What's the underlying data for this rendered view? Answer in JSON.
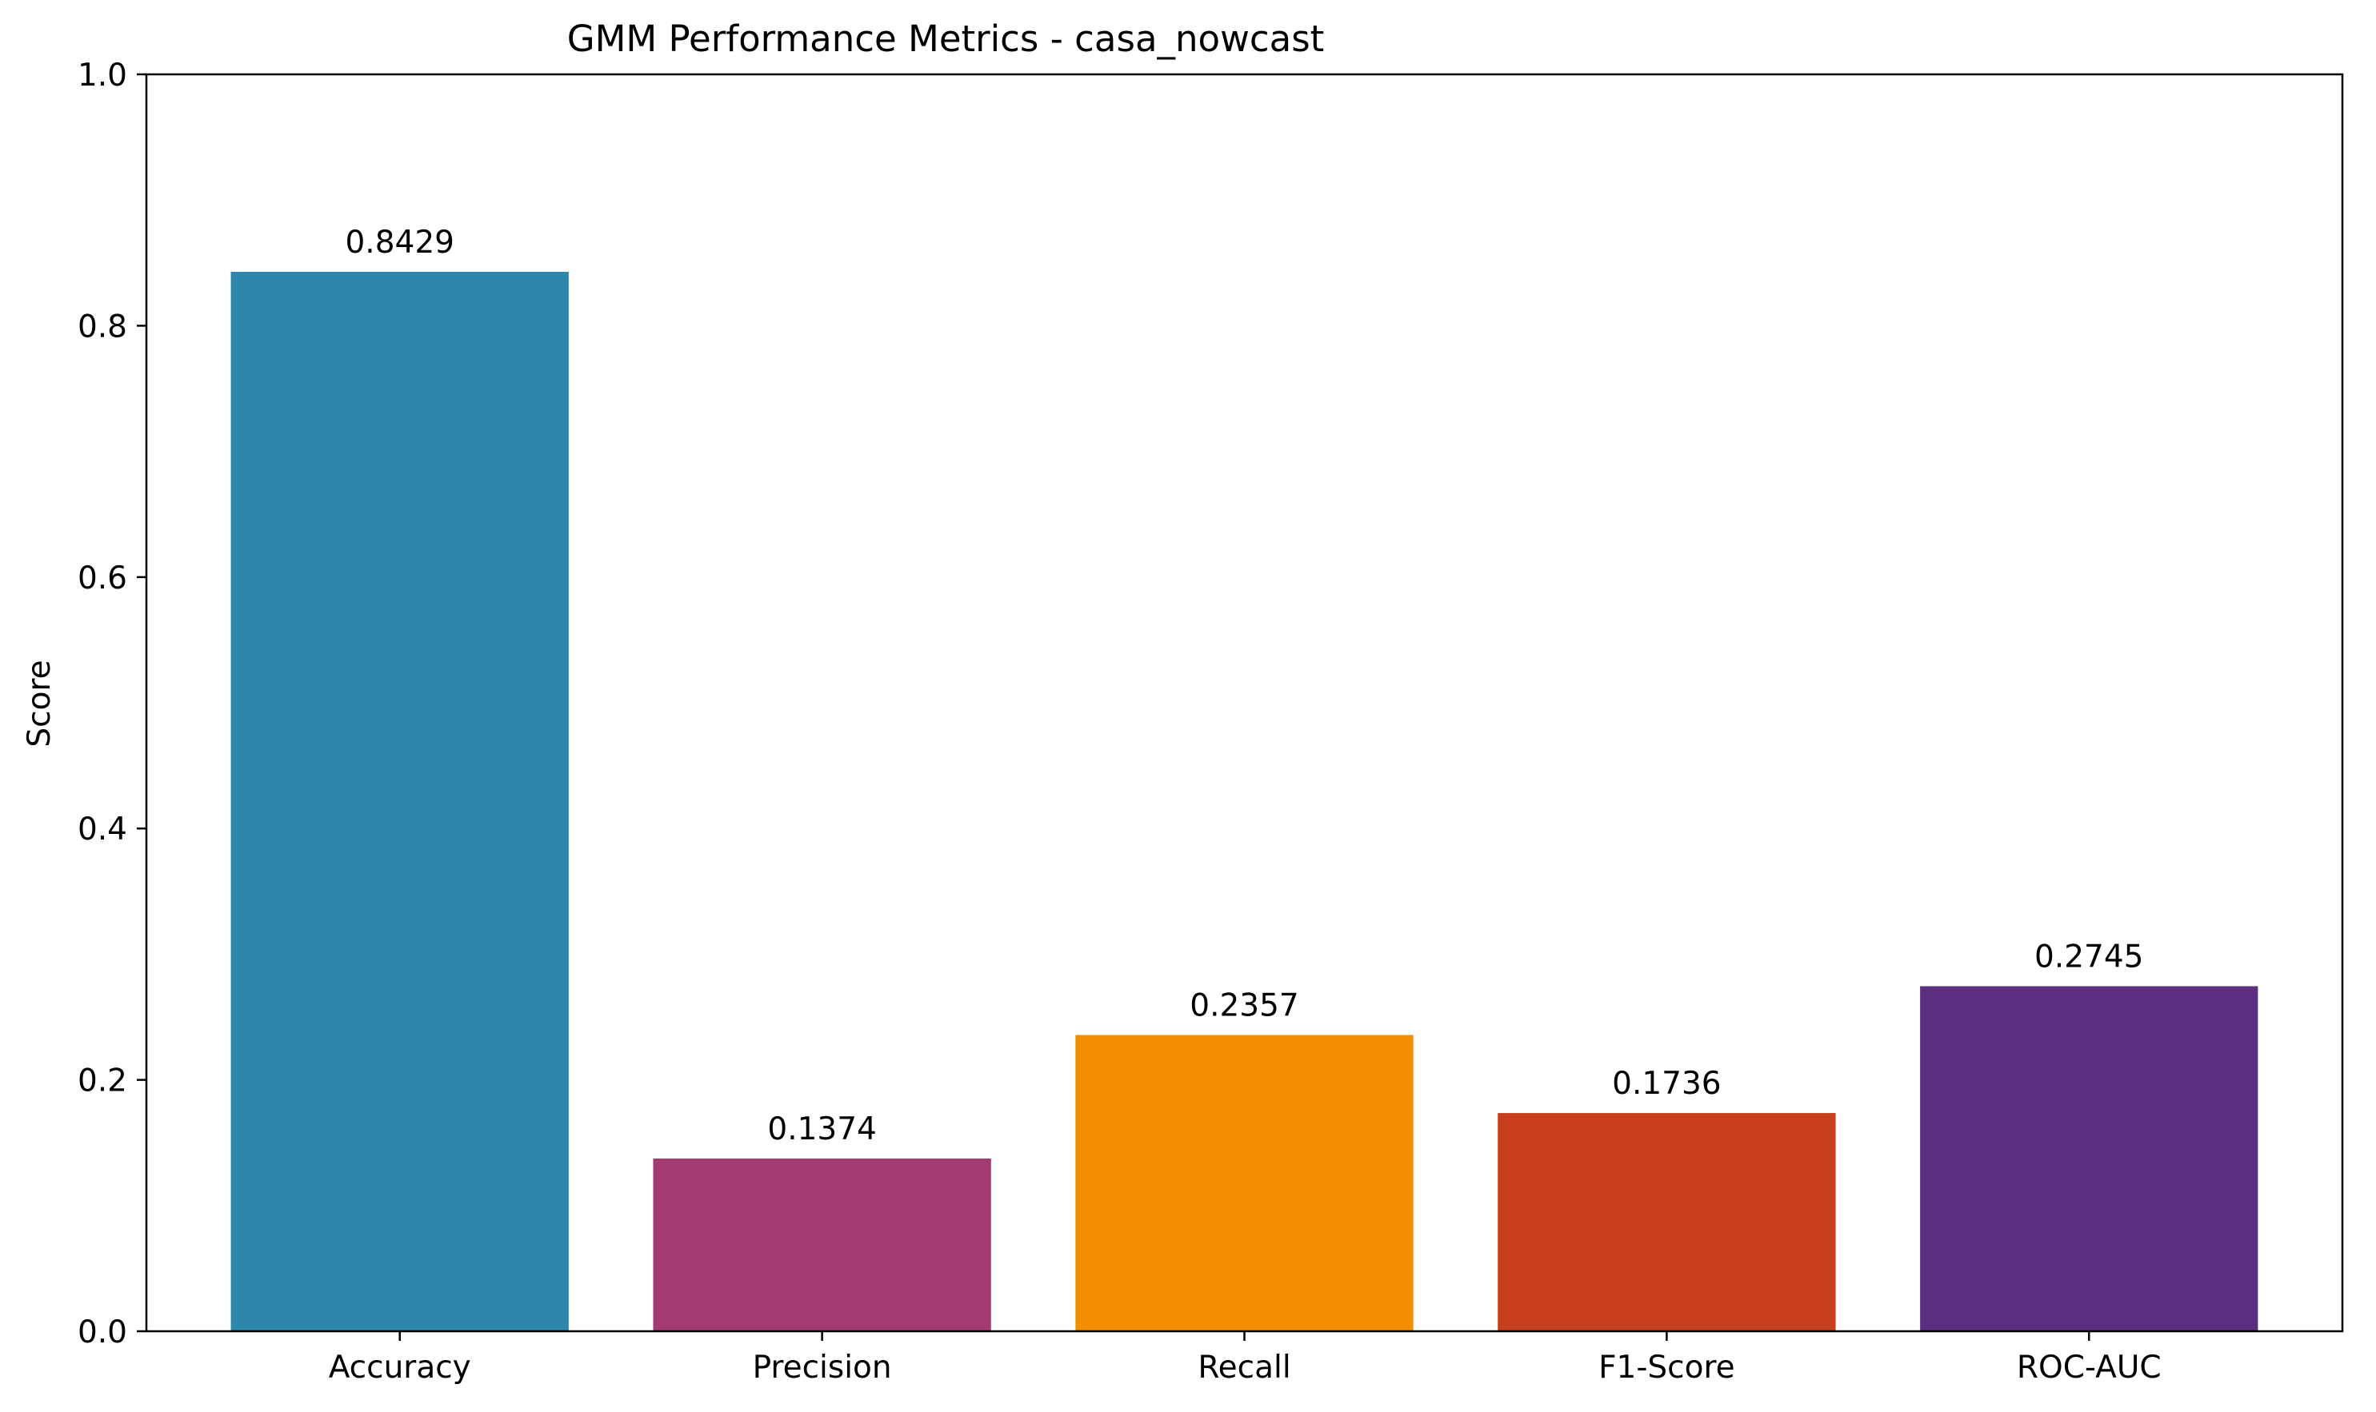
{
  "chart_data": {
    "type": "bar",
    "title": "GMM Performance Metrics - casa_nowcast",
    "xlabel": "",
    "ylabel": "Score",
    "categories": [
      "Accuracy",
      "Precision",
      "Recall",
      "F1-Score",
      "ROC-AUC"
    ],
    "values": [
      0.8429,
      0.1374,
      0.2357,
      0.1736,
      0.2745
    ],
    "value_labels": [
      "0.8429",
      "0.1374",
      "0.2357",
      "0.1736",
      "0.2745"
    ],
    "colors": [
      "#2E86AB",
      "#A23B72",
      "#F18F01",
      "#C73E1D",
      "#5B2E80"
    ],
    "ylim": [
      0,
      1.0
    ],
    "yticks": [
      0.0,
      0.2,
      0.4,
      0.6,
      0.8,
      1.0
    ],
    "ytick_labels": [
      "0.0",
      "0.2",
      "0.4",
      "0.6",
      "0.8",
      "1.0"
    ],
    "grid": false,
    "legend": "none"
  }
}
